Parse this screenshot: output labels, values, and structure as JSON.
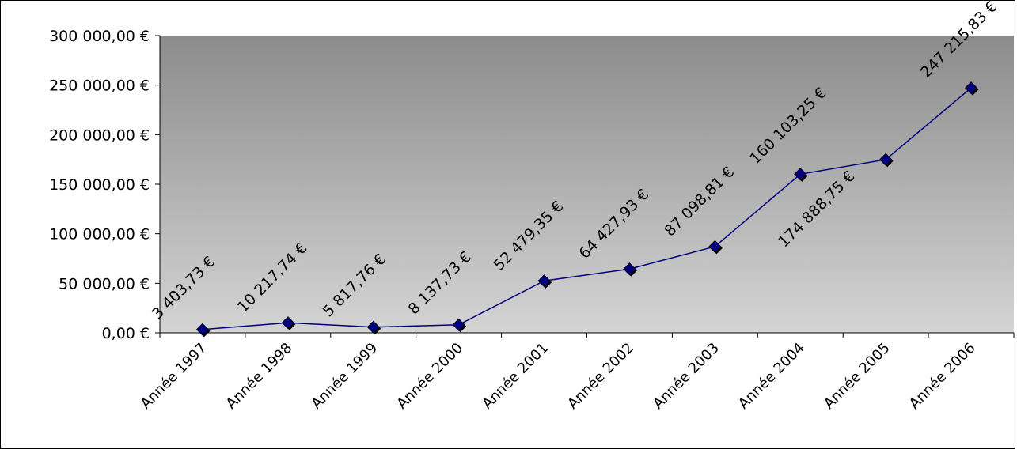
{
  "chart_data": {
    "type": "line",
    "title": "",
    "xlabel": "",
    "ylabel": "",
    "categories": [
      "Année 1997",
      "Année 1998",
      "Année 1999",
      "Année 2000",
      "Année 2001",
      "Année 2002",
      "Année 2003",
      "Année 2004",
      "Année 2005",
      "Année 2006"
    ],
    "values": [
      3403.73,
      10217.74,
      5817.76,
      8137.73,
      52479.35,
      64427.93,
      87098.81,
      160103.25,
      174888.75,
      247215.83
    ],
    "data_labels": [
      "3 403,73 €",
      "10 217,74 €",
      "5 817,76 €",
      "8 137,73 €",
      "52 479,35 €",
      "64 427,93 €",
      "87 098,81 €",
      "160 103,25 €",
      "174 888,75 €",
      "247 215,83 €"
    ],
    "y_ticks": [
      0,
      50000,
      100000,
      150000,
      200000,
      250000,
      300000
    ],
    "y_tick_labels": [
      "0,00 €",
      "50 000,00 €",
      "100 000,00 €",
      "150 000,00 €",
      "200 000,00 €",
      "250 000,00 €",
      "300 000,00 €"
    ],
    "ylim": [
      0,
      300000
    ],
    "grid": false,
    "legend": "none",
    "colors": {
      "line": "#000080",
      "marker": "#000080",
      "plot_bg_top": "#8c8c8c",
      "plot_bg_bottom": "#d4d4d4"
    }
  }
}
